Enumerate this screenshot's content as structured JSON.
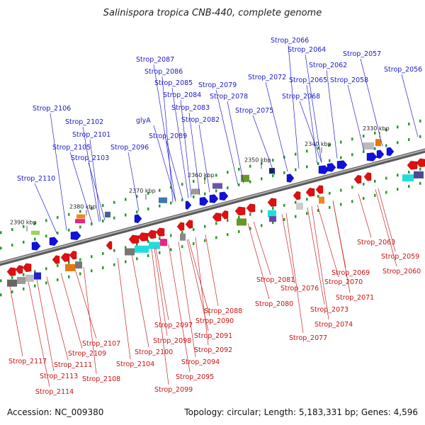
{
  "title": "Salinispora tropica CNB-440, complete genome",
  "footer": {
    "accession": "Accession: NC_009380",
    "summary": "Topology: circular; Length: 5,183,331 bp; Genes: 4,596"
  },
  "colors": {
    "plus_label": "#1a1ac8",
    "minus_label": "#cc1111",
    "plus_arrow": "#1010e0",
    "minus_arrow": "#e01010",
    "backbone": "#8a8a8a"
  },
  "ticks": [
    "2330 kbp",
    "2340 kbp",
    "2350 kbp",
    "2360 kbp",
    "2370 kbp",
    "2380 kbp",
    "2390 kbp"
  ],
  "top_labels": [
    "Strop_2066",
    "Strop_2064",
    "Strop_2057",
    "Strop_2062",
    "Strop_2056",
    "Strop_2072",
    "Strop_2065",
    "Strop_2058",
    "Strop_2087",
    "Strop_2086",
    "Strop_2085",
    "Strop_2079",
    "Strop_2084",
    "Strop_2078",
    "Strop_2068",
    "Strop_2083",
    "Strop_2106",
    "Strop_2075",
    "Strop_2082",
    "Strop_2102",
    "glyA",
    "Strop_2101",
    "Strop_2089",
    "Strop_2105",
    "Strop_2096",
    "Strop_2103",
    "Strop_2110"
  ],
  "bottom_labels": [
    "Strop_2063",
    "Strop_2059",
    "Strop_2060",
    "Strop_2069",
    "Strop_2081",
    "Strop_2070",
    "Strop_2076",
    "Strop_2071",
    "Strop_2080",
    "Strop_2088",
    "Strop_2073",
    "Strop_2090",
    "Strop_2097",
    "Strop_2074",
    "Strop_2091",
    "Strop_2098",
    "Strop_2077",
    "Strop_2107",
    "Strop_2092",
    "Strop_2100",
    "Strop_2109",
    "Strop_2117",
    "Strop_2094",
    "Strop_2111",
    "Strop_2104",
    "Strop_2113",
    "Strop_2095",
    "Strop_2108",
    "Strop_2099",
    "Strop_2114"
  ]
}
